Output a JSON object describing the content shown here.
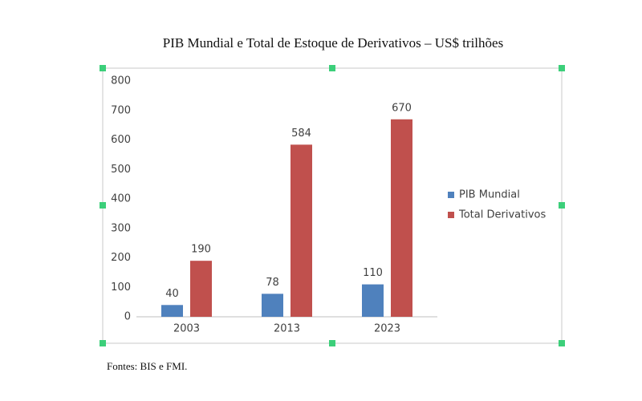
{
  "chart_data": {
    "type": "bar",
    "title": "PIB Mundial e Total de Estoque de Derivativos – US$ trilhões",
    "categories": [
      "2003",
      "2013",
      "2023"
    ],
    "series": [
      {
        "name": "PIB Mundial",
        "color": "#4f81bd",
        "values": [
          40,
          78,
          110
        ]
      },
      {
        "name": "Total Derivativos",
        "color": "#c0504d",
        "values": [
          190,
          584,
          670
        ]
      }
    ],
    "ylim": [
      0,
      800
    ],
    "yticks": [
      0,
      100,
      200,
      300,
      400,
      500,
      600,
      700,
      800
    ],
    "grid": false,
    "legend": "right",
    "source": "Fontes: BIS e FMI."
  }
}
